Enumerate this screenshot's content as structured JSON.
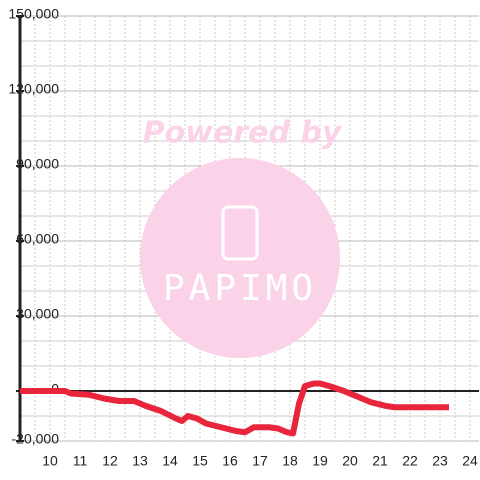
{
  "chart_data": {
    "type": "line",
    "x": [
      9,
      10.5,
      10.7,
      11.3,
      11.8,
      12.3,
      12.8,
      13.2,
      13.7,
      14.2,
      14.4,
      14.6,
      14.9,
      15.2,
      15.7,
      16.2,
      16.5,
      16.8,
      17.3,
      17.6,
      17.9,
      18.1,
      18.3,
      18.5,
      18.8,
      19.0,
      19.3,
      19.8,
      20.2,
      20.7,
      21.2,
      21.5,
      22,
      23.3
    ],
    "series": [
      {
        "color": "#e8253a",
        "values": [
          0,
          0,
          -1000,
          -1500,
          -3000,
          -4000,
          -4000,
          -6000,
          -8000,
          -11000,
          -12000,
          -10000,
          -11000,
          -13000,
          -14500,
          -16000,
          -16500,
          -14500,
          -14500,
          -15000,
          -16500,
          -17000,
          -5000,
          2000,
          3000,
          3000,
          2000,
          0,
          -2000,
          -4500,
          -6000,
          -6500,
          -6500,
          -6500
        ]
      }
    ],
    "xlim": [
      9,
      24.3
    ],
    "xticks": [
      10,
      11,
      12,
      13,
      14,
      15,
      16,
      17,
      18,
      19,
      20,
      21,
      22,
      23,
      24
    ],
    "x_minor_ticks": [
      9.5,
      10.5,
      11.5,
      12.5,
      13.5,
      14.5,
      15.5,
      16.5,
      17.5,
      18.5,
      19.5,
      20.5,
      21.5,
      22.5,
      23.5
    ],
    "ylim": [
      -20000,
      150000
    ],
    "yticks": [
      {
        "value": -20000,
        "label": "-20,000"
      },
      0,
      {
        "value": 30000,
        "label": "30,000"
      },
      {
        "value": 60000,
        "label": "60,000"
      },
      {
        "value": 90000,
        "label": "90,000"
      },
      {
        "value": 120000,
        "label": "120,000"
      },
      {
        "value": 150000,
        "label": "150,000"
      }
    ],
    "y_minor_ticks": [
      -10000,
      10000,
      20000,
      40000,
      50000,
      70000,
      80000,
      100000,
      110000,
      130000,
      140000
    ],
    "grid": true
  },
  "watermark": {
    "text": "Powered by",
    "logo": "PAPIMO"
  }
}
